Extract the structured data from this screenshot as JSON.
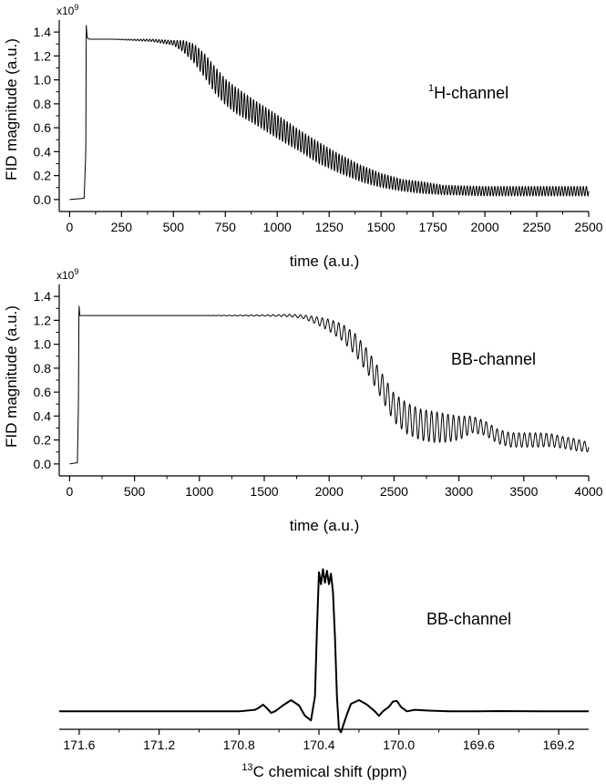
{
  "chart_data": [
    {
      "type": "line",
      "title": "",
      "annotation": "1H-channel",
      "annotation_parts": {
        "sup": "1",
        "text": "H-channel"
      },
      "xlabel": "time (a.u.)",
      "ylabel": "FID magnitude (a.u.)",
      "multiplier": {
        "base": "x10",
        "exp": "9"
      },
      "xlim": [
        -50,
        2500
      ],
      "ylim": [
        -0.1,
        1.5
      ],
      "x_ticks": [
        0,
        250,
        500,
        750,
        1000,
        1250,
        1500,
        1750,
        2000,
        2250,
        2500
      ],
      "x_tick_labels": [
        "0",
        "250",
        "500",
        "750",
        "1000",
        "1250",
        "1500",
        "1750",
        "2000",
        "2250",
        "2500"
      ],
      "y_ticks": [
        0.0,
        0.2,
        0.4,
        0.6,
        0.8,
        1.0,
        1.2,
        1.4
      ],
      "y_tick_labels": [
        "0.0",
        "0.2",
        "0.4",
        "0.6",
        "0.8",
        "1.0",
        "1.2",
        "1.4"
      ],
      "series": [
        {
          "x": [
            0,
            70,
            78,
            80,
            85,
            95,
            200,
            400,
            500,
            550,
            600,
            650,
            700,
            750,
            800,
            900,
            1000,
            1100,
            1200,
            1300,
            1400,
            1500,
            1600,
            1700,
            1800,
            2000,
            2200,
            2500
          ],
          "y": [
            0.0,
            0.01,
            0.4,
            1.46,
            1.35,
            1.34,
            1.34,
            1.33,
            1.31,
            1.28,
            1.22,
            1.12,
            1.0,
            0.9,
            0.83,
            0.72,
            0.61,
            0.5,
            0.39,
            0.3,
            0.22,
            0.16,
            0.12,
            0.1,
            0.08,
            0.07,
            0.07,
            0.07
          ],
          "oscillation_amplitude": [
            0,
            0,
            0,
            0,
            0,
            0,
            0,
            0.01,
            0.02,
            0.05,
            0.08,
            0.1,
            0.11,
            0.11,
            0.11,
            0.1,
            0.1,
            0.09,
            0.09,
            0.08,
            0.07,
            0.06,
            0.05,
            0.05,
            0.04,
            0.04,
            0.04,
            0.04
          ]
        }
      ]
    },
    {
      "type": "line",
      "title": "",
      "annotation": "BB-channel",
      "xlabel": "time (a.u.)",
      "ylabel": "FID magnitude (a.u.)",
      "multiplier": {
        "base": "x10",
        "exp": "9"
      },
      "xlim": [
        -80,
        4000
      ],
      "ylim": [
        -0.1,
        1.5
      ],
      "x_ticks": [
        0,
        500,
        1000,
        1500,
        2000,
        2500,
        3000,
        3500,
        4000
      ],
      "x_tick_labels": [
        "0",
        "500",
        "1000",
        "1500",
        "2000",
        "2500",
        "3000",
        "3500",
        "4000"
      ],
      "y_ticks": [
        0.0,
        0.2,
        0.4,
        0.6,
        0.8,
        1.0,
        1.2,
        1.4
      ],
      "y_tick_labels": [
        "0.0",
        "0.2",
        "0.4",
        "0.6",
        "0.8",
        "1.0",
        "1.2",
        "1.4"
      ],
      "series": [
        {
          "x": [
            0,
            60,
            68,
            72,
            78,
            90,
            500,
            1000,
            1500,
            1700,
            1800,
            1900,
            2000,
            2100,
            2200,
            2300,
            2400,
            2500,
            2600,
            2700,
            2800,
            2900,
            3000,
            3100,
            3200,
            3300,
            3400,
            3500,
            3600,
            3700,
            3800,
            3900,
            4000
          ],
          "y": [
            0.0,
            0.01,
            0.5,
            1.34,
            1.24,
            1.24,
            1.24,
            1.24,
            1.24,
            1.24,
            1.23,
            1.2,
            1.16,
            1.1,
            1.0,
            0.85,
            0.66,
            0.47,
            0.38,
            0.33,
            0.31,
            0.3,
            0.3,
            0.33,
            0.3,
            0.23,
            0.2,
            0.2,
            0.2,
            0.2,
            0.18,
            0.16,
            0.14
          ],
          "oscillation_amplitude": [
            0,
            0,
            0,
            0,
            0,
            0,
            0,
            0,
            0.005,
            0.01,
            0.015,
            0.03,
            0.05,
            0.07,
            0.09,
            0.1,
            0.11,
            0.12,
            0.13,
            0.13,
            0.13,
            0.12,
            0.1,
            0.07,
            0.06,
            0.06,
            0.06,
            0.06,
            0.06,
            0.055,
            0.05,
            0.05,
            0.04
          ]
        }
      ]
    },
    {
      "type": "line",
      "title": "",
      "annotation": "BB-channel",
      "xlabel": "13C chemical shift (ppm)",
      "xlabel_parts": {
        "sup": "13",
        "text": "C chemical shift (ppm)"
      },
      "ylabel": "",
      "x_reversed": true,
      "xlim": [
        171.7,
        169.05
      ],
      "ylim": [
        -0.12,
        1.05
      ],
      "x_ticks": [
        171.6,
        171.2,
        170.8,
        170.4,
        170.0,
        169.6,
        169.2
      ],
      "x_tick_labels": [
        "171.6",
        "171.2",
        "170.8",
        "170.4",
        "170.0",
        "169.6",
        "169.2"
      ],
      "series": [
        {
          "x": [
            171.7,
            171.0,
            170.8,
            170.72,
            170.7,
            170.68,
            170.66,
            170.64,
            170.62,
            170.58,
            170.54,
            170.5,
            170.47,
            170.44,
            170.42,
            170.41,
            170.4,
            170.39,
            170.38,
            170.37,
            170.36,
            170.35,
            170.34,
            170.33,
            170.32,
            170.31,
            170.3,
            170.29,
            170.28,
            170.26,
            170.24,
            170.2,
            170.16,
            170.12,
            170.1,
            170.08,
            170.05,
            170.03,
            170.01,
            169.99,
            169.96,
            169.92,
            169.85,
            169.75,
            169.6,
            169.5,
            169.3,
            169.05
          ],
          "y": [
            0.0,
            0.0,
            0.0,
            0.01,
            0.025,
            0.045,
            0.02,
            -0.01,
            0.0,
            0.04,
            0.075,
            0.04,
            -0.03,
            -0.06,
            0.1,
            0.55,
            0.93,
            0.85,
            0.95,
            0.86,
            0.94,
            0.85,
            0.92,
            0.8,
            0.5,
            0.1,
            -0.12,
            -0.14,
            -0.1,
            -0.02,
            0.05,
            0.075,
            0.045,
            0.0,
            -0.03,
            0.0,
            0.03,
            0.065,
            0.07,
            0.03,
            0.0,
            0.01,
            0.005,
            0.0,
            0.0,
            0.002,
            0.0,
            0.0
          ],
          "oscillation_amplitude": []
        }
      ]
    }
  ]
}
